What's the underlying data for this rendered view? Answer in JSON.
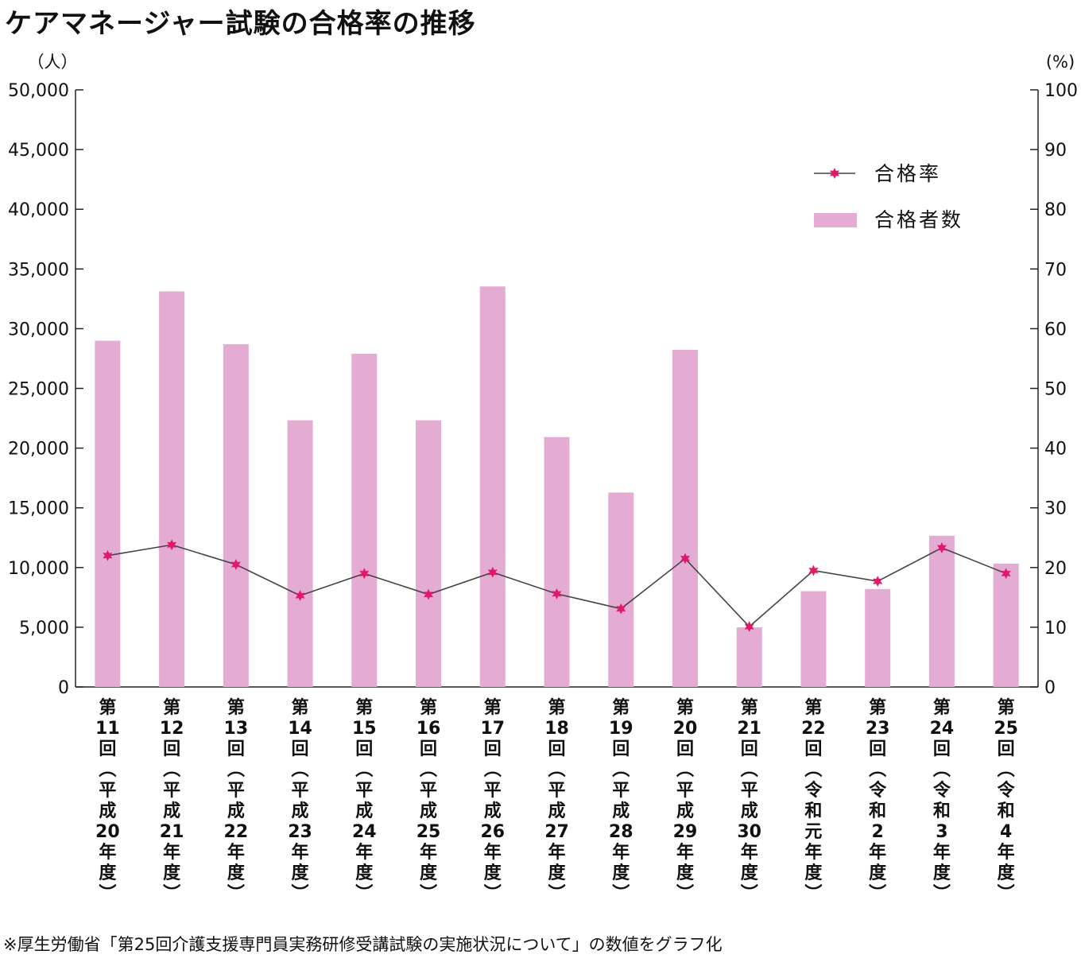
{
  "title": "ケアマネージャー試験の合格率の推移",
  "footnote": "※厚生労働省「第25回介護支援専門員実務研修受講試験の実施状況について」の数値をグラフ化",
  "colors": {
    "bar": "#e4acd3",
    "line": "#444444",
    "marker": "#e0196b",
    "axis": "#222222"
  },
  "chart_data": {
    "type": "bar",
    "categories": [
      "第11回（平成20年度）",
      "第12回（平成21年度）",
      "第13回（平成22年度）",
      "第14回（平成23年度）",
      "第15回（平成24年度）",
      "第16回（平成25年度）",
      "第17回（平成26年度）",
      "第18回（平成27年度）",
      "第19回（平成28年度）",
      "第20回（平成29年度）",
      "第21回（平成30年度）",
      "第22回（令和元年度）",
      "第23回（令和2年度）",
      "第24回（令和3年度）",
      "第25回（令和4年度）"
    ],
    "category_lines": [
      [
        "第",
        "11",
        "回",
        "︵",
        "平",
        "成",
        "20",
        "年",
        "度",
        "︶"
      ],
      [
        "第",
        "12",
        "回",
        "︵",
        "平",
        "成",
        "21",
        "年",
        "度",
        "︶"
      ],
      [
        "第",
        "13",
        "回",
        "︵",
        "平",
        "成",
        "22",
        "年",
        "度",
        "︶"
      ],
      [
        "第",
        "14",
        "回",
        "︵",
        "平",
        "成",
        "23",
        "年",
        "度",
        "︶"
      ],
      [
        "第",
        "15",
        "回",
        "︵",
        "平",
        "成",
        "24",
        "年",
        "度",
        "︶"
      ],
      [
        "第",
        "16",
        "回",
        "︵",
        "平",
        "成",
        "25",
        "年",
        "度",
        "︶"
      ],
      [
        "第",
        "17",
        "回",
        "︵",
        "平",
        "成",
        "26",
        "年",
        "度",
        "︶"
      ],
      [
        "第",
        "18",
        "回",
        "︵",
        "平",
        "成",
        "27",
        "年",
        "度",
        "︶"
      ],
      [
        "第",
        "19",
        "回",
        "︵",
        "平",
        "成",
        "28",
        "年",
        "度",
        "︶"
      ],
      [
        "第",
        "20",
        "回",
        "︵",
        "平",
        "成",
        "29",
        "年",
        "度",
        "︶"
      ],
      [
        "第",
        "21",
        "回",
        "︵",
        "平",
        "成",
        "30",
        "年",
        "度",
        "︶"
      ],
      [
        "第",
        "22",
        "回",
        "︵",
        "令",
        "和",
        "元",
        "年",
        "度",
        "︶"
      ],
      [
        "第",
        "23",
        "回",
        "︵",
        "令",
        "和",
        "2",
        "年",
        "度",
        "︶"
      ],
      [
        "第",
        "24",
        "回",
        "︵",
        "令",
        "和",
        "3",
        "年",
        "度",
        "︶"
      ],
      [
        "第",
        "25",
        "回",
        "︵",
        "令",
        "和",
        "4",
        "年",
        "度",
        "︶"
      ]
    ],
    "series": [
      {
        "name": "合格者数",
        "kind": "bar",
        "axis": "left",
        "values": [
          28992,
          33119,
          28703,
          22332,
          27905,
          22331,
          33539,
          20924,
          16281,
          28233,
          4990,
          8018,
          8200,
          12662,
          10328
        ]
      },
      {
        "name": "合格率",
        "kind": "line",
        "axis": "right",
        "values": [
          22.0,
          23.8,
          20.5,
          15.3,
          19.0,
          15.5,
          19.2,
          15.6,
          13.1,
          21.5,
          10.1,
          19.5,
          17.7,
          23.3,
          19.0
        ]
      }
    ],
    "y_left": {
      "unit": "（人）",
      "range": [
        0,
        50000
      ],
      "ticks": [
        0,
        5000,
        10000,
        15000,
        20000,
        25000,
        30000,
        35000,
        40000,
        45000,
        50000
      ],
      "tick_labels": [
        "0",
        "5,000",
        "10,000",
        "15,000",
        "20,000",
        "25,000",
        "30,000",
        "35,000",
        "40,000",
        "45,000",
        "50,000"
      ]
    },
    "y_right": {
      "unit": "(%)",
      "range": [
        0,
        100
      ],
      "ticks": [
        0,
        10,
        20,
        30,
        40,
        50,
        60,
        70,
        80,
        90,
        100
      ],
      "tick_labels": [
        "0",
        "10",
        "20",
        "30",
        "40",
        "50",
        "60",
        "70",
        "80",
        "90",
        "100"
      ]
    },
    "legend": {
      "position": "top-right",
      "items": [
        "合格率",
        "合格者数"
      ]
    },
    "grid": false
  }
}
